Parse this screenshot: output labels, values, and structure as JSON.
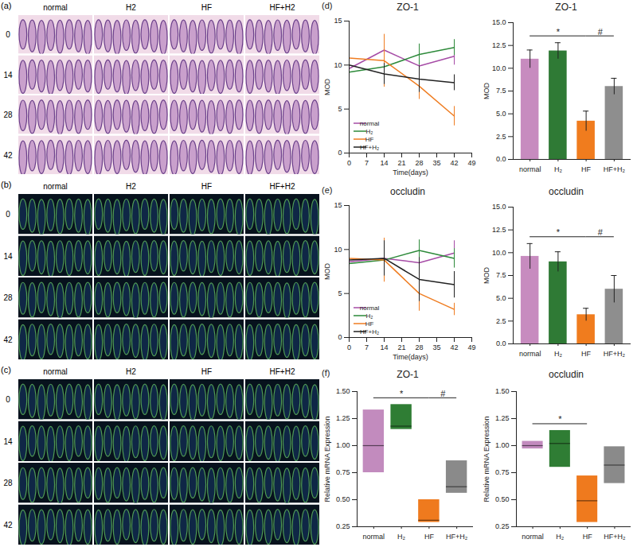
{
  "image_panels": [
    {
      "panel": "(a)",
      "columns": [
        "normal",
        "H2",
        "HF",
        "HF+H2"
      ],
      "rows": [
        "0",
        "14",
        "28",
        "42"
      ]
    },
    {
      "panel": "(b)",
      "columns": [
        "normal",
        "H2",
        "HF",
        "HF+H2"
      ],
      "rows": [
        "0",
        "14",
        "28",
        "42"
      ]
    },
    {
      "panel": "(c)",
      "columns": [
        "normal",
        "H2",
        "HF",
        "HF+H2"
      ],
      "rows": [
        "0",
        "14",
        "28",
        "42"
      ]
    }
  ],
  "chart_data": [
    {
      "panel": "(d)",
      "type": "line",
      "title": "ZO-1",
      "x_label": "Time(days)",
      "y_label": "MOD",
      "x": [
        0,
        14,
        28,
        42
      ],
      "xlim": [
        0,
        49
      ],
      "xticks": [
        0,
        7,
        14,
        21,
        28,
        35,
        42,
        49
      ],
      "ylim": [
        0,
        15
      ],
      "yticks": [
        0,
        5,
        10,
        15
      ],
      "legend": "bottom-left",
      "series": [
        {
          "name": "normal",
          "color": "#a64ca6",
          "values": [
            9.6,
            11.7,
            9.9,
            11.0
          ],
          "errors": [
            1.5,
            1.5,
            1.2,
            1.0
          ]
        },
        {
          "name": "H₂",
          "color": "#2d8a3a",
          "values": [
            9.2,
            9.8,
            11.2,
            12.0
          ],
          "errors": [
            1.2,
            1.0,
            1.2,
            0.9
          ]
        },
        {
          "name": "HF",
          "color": "#ef7d22",
          "values": [
            10.8,
            10.5,
            7.6,
            4.2
          ],
          "errors": [
            2.0,
            3.0,
            1.5,
            1.1
          ]
        },
        {
          "name": "HF+H₂",
          "color": "#222222",
          "values": [
            10.0,
            9.0,
            8.4,
            8.0
          ],
          "errors": [
            2.5,
            1.2,
            1.5,
            0.9
          ]
        }
      ]
    },
    {
      "type": "bar",
      "title": "ZO-1",
      "y_label": "MOD",
      "categories": [
        "normal",
        "H₂",
        "HF",
        "HF+H₂"
      ],
      "values": [
        11.0,
        11.9,
        4.2,
        8.0
      ],
      "errors": [
        1.0,
        0.9,
        1.1,
        0.9
      ],
      "colors": [
        "#c78bbf",
        "#2f7a35",
        "#f07c1e",
        "#8e8e8e"
      ],
      "ylim": [
        0,
        15
      ],
      "yticks": [
        {
          "value": 0,
          "label": "0.0"
        },
        2.5,
        {
          "value": 5,
          "label": "5.0"
        },
        7.5,
        {
          "value": 10,
          "label": "10.0"
        },
        12.5,
        {
          "value": 15,
          "label": "15.0"
        }
      ],
      "annotations": [
        {
          "text": "*",
          "from": "normal",
          "to": "HF"
        },
        {
          "text": "#",
          "from": "HF",
          "to": "HF+H₂"
        }
      ]
    },
    {
      "panel": "(e)",
      "type": "line",
      "title": "occludin",
      "x_label": "Time(days)",
      "y_label": "MOD",
      "x": [
        0,
        14,
        28,
        42
      ],
      "xlim": [
        0,
        49
      ],
      "xticks": [
        0,
        7,
        14,
        21,
        28,
        35,
        42,
        49
      ],
      "ylim": [
        0,
        15
      ],
      "yticks": [
        0,
        5,
        10,
        15
      ],
      "legend": "bottom-left",
      "series": [
        {
          "name": "normal",
          "color": "#a64ca6",
          "values": [
            8.6,
            9.0,
            8.5,
            9.6
          ],
          "errors": [
            1.5,
            2.0,
            2.0,
            1.4
          ]
        },
        {
          "name": "H₂",
          "color": "#2d8a3a",
          "values": [
            8.4,
            8.8,
            9.9,
            9.0
          ],
          "errors": [
            1.2,
            1.5,
            1.2,
            1.1
          ]
        },
        {
          "name": "HF",
          "color": "#ef7d22",
          "values": [
            9.0,
            8.8,
            5.0,
            3.2
          ],
          "errors": [
            1.8,
            2.5,
            2.0,
            0.7
          ]
        },
        {
          "name": "HF+H₂",
          "color": "#222222",
          "values": [
            8.8,
            9.0,
            6.6,
            6.0
          ],
          "errors": [
            1.5,
            2.0,
            2.5,
            1.5
          ]
        }
      ]
    },
    {
      "type": "bar",
      "title": "occludin",
      "y_label": "MOD",
      "categories": [
        "normal",
        "H₂",
        "HF",
        "HF+H₂"
      ],
      "values": [
        9.6,
        9.0,
        3.2,
        6.0
      ],
      "errors": [
        1.4,
        1.1,
        0.7,
        1.5
      ],
      "colors": [
        "#c78bbf",
        "#2f7a35",
        "#f07c1e",
        "#8e8e8e"
      ],
      "ylim": [
        0,
        15
      ],
      "yticks": [
        {
          "value": 0,
          "label": "0.0"
        },
        2.5,
        {
          "value": 5,
          "label": "5.0"
        },
        7.5,
        {
          "value": 10,
          "label": "10.0"
        },
        12.5,
        {
          "value": 15,
          "label": "15.0"
        }
      ],
      "annotations": [
        {
          "text": "*",
          "from": "normal",
          "to": "HF"
        },
        {
          "text": "#",
          "from": "HF",
          "to": "HF+H₂"
        }
      ]
    },
    {
      "panel": "(f)",
      "type": "box",
      "title": "ZO-1",
      "y_label": "Relative mRNA Expression",
      "categories": [
        "normal",
        "H₂",
        "HF",
        "HF+H₂"
      ],
      "min": [
        0.75,
        1.15,
        0.29,
        0.56
      ],
      "median": [
        1.0,
        1.18,
        0.31,
        0.62
      ],
      "max": [
        1.33,
        1.38,
        0.5,
        0.86
      ],
      "colors": [
        "#c28bbe",
        "#2f7d34",
        "#ef7a1e",
        "#8a8a8a"
      ],
      "ylim": [
        0.25,
        1.5
      ],
      "yticks": [
        0.25,
        {
          "value": 0.5,
          "label": "0.50"
        },
        0.75,
        {
          "value": 1.0,
          "label": "1.00"
        },
        1.25,
        {
          "value": 1.5,
          "label": "1.50"
        }
      ],
      "annotations": [
        {
          "text": "*",
          "from": "normal",
          "to": "HF"
        },
        {
          "text": "#",
          "from": "HF",
          "to": "HF+H₂"
        }
      ]
    },
    {
      "type": "box",
      "title": "occludin",
      "y_label": "Relative mRNA Expression",
      "categories": [
        "normal",
        "H₂",
        "HF",
        "HF+H₂"
      ],
      "min": [
        0.97,
        0.8,
        0.29,
        0.65
      ],
      "median": [
        1.0,
        1.02,
        0.49,
        0.82
      ],
      "max": [
        1.04,
        1.14,
        0.72,
        0.99
      ],
      "colors": [
        "#c28bbe",
        "#2f7d34",
        "#ef7a1e",
        "#8a8a8a"
      ],
      "ylim": [
        0.25,
        1.5
      ],
      "yticks": [
        0.25,
        {
          "value": 0.5,
          "label": "0.50"
        },
        0.75,
        {
          "value": 1.0,
          "label": "1.00"
        },
        1.25,
        {
          "value": 1.5,
          "label": "1.50"
        }
      ],
      "annotations": [
        {
          "text": "*",
          "from": "normal",
          "to": "HF"
        }
      ]
    }
  ]
}
